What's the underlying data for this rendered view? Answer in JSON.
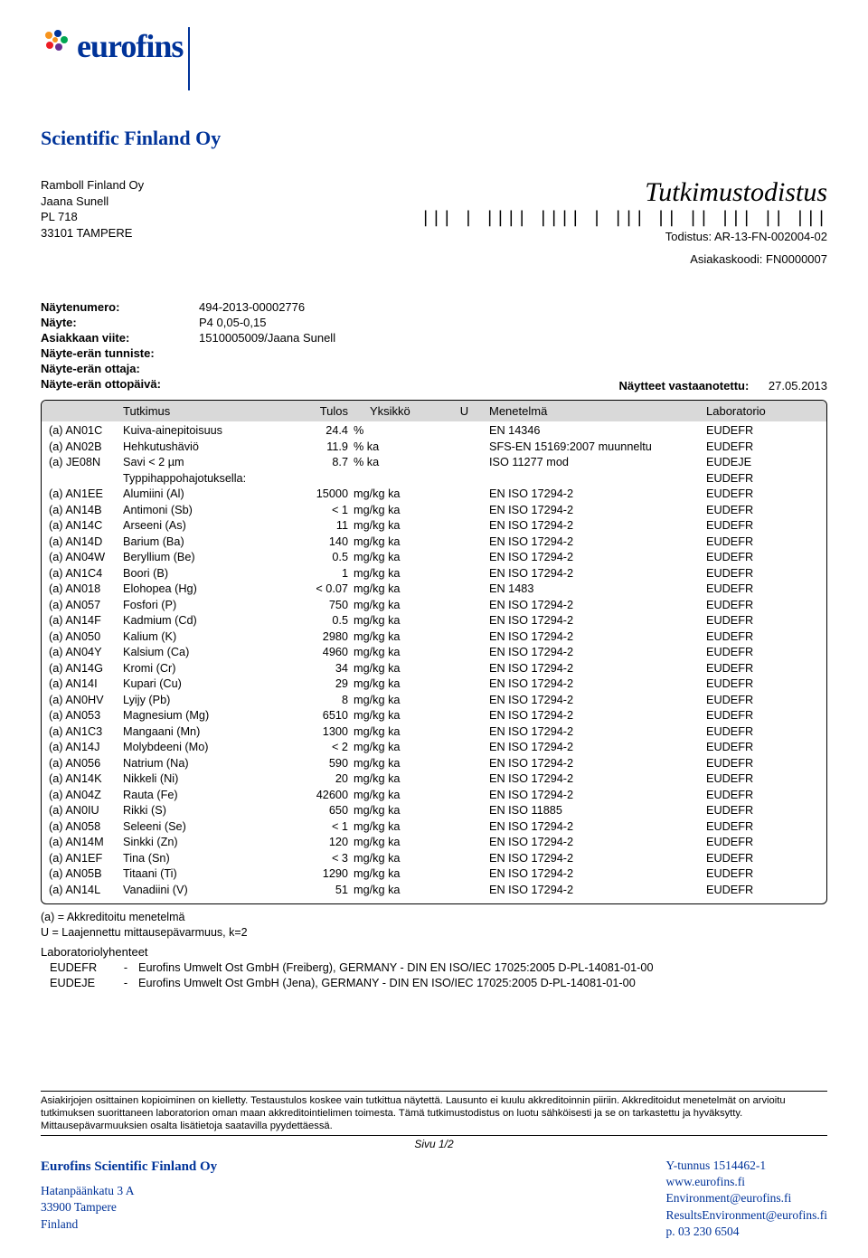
{
  "brand": {
    "logo_text": "eurofins",
    "company_line": "Scientific Finland Oy"
  },
  "customer": {
    "line1": "Ramboll Finland Oy",
    "line2": "Jaana Sunell",
    "line3": "PL 718",
    "line4": "33101 TAMPERE"
  },
  "doc": {
    "title": "Tutkimustodistus",
    "barcode_visual": "||| | |||| |||| | ||| || || ||| || |||",
    "cert_label": "Todistus:",
    "cert_value": "AR-13-FN-002004-02",
    "custcode_label": "Asiakaskoodi:",
    "custcode_value": "FN0000007"
  },
  "meta": {
    "rows": [
      {
        "k": "Näytenumero:",
        "v": "494-2013-00002776"
      },
      {
        "k": "Näyte:",
        "v": "P4  0,05-0,15"
      },
      {
        "k": "Asiakkaan viite:",
        "v": "1510005009/Jaana Sunell"
      },
      {
        "k": "Näyte-erän tunniste:",
        "v": ""
      },
      {
        "k": "Näyte-erän ottaja:",
        "v": ""
      },
      {
        "k": "Näyte-erän ottopäivä:",
        "v": ""
      }
    ],
    "received_label": "Näytteet vastaanotettu:",
    "received_value": "27.05.2013"
  },
  "table": {
    "head": {
      "tutkimus": "Tutkimus",
      "tulos": "Tulos",
      "yksikko": "Yksikkö",
      "u": "U",
      "menetelma": "Menetelmä",
      "lab": "Laboratorio"
    },
    "typpi_note": "Typpihappohajotuksella:",
    "typpi_lab": "EUDEFR",
    "rows_pre": [
      {
        "code": "(a)  AN01C",
        "name": "Kuiva-ainepitoisuus",
        "res": "24.4",
        "unit": "%",
        "meth": "EN 14346",
        "lab": "EUDEFR"
      },
      {
        "code": "(a)  AN02B",
        "name": "Hehkutushäviö",
        "res": "11.9",
        "unit": "% ka",
        "meth": "SFS-EN 15169:2007 muunneltu",
        "lab": "EUDEFR"
      },
      {
        "code": "(a)  JE08N",
        "name": "Savi < 2 µm",
        "res": "8.7",
        "unit": "% ka",
        "meth": "ISO 11277 mod",
        "lab": "EUDEJE"
      }
    ],
    "rows_post": [
      {
        "code": "(a)  AN1EE",
        "name": "Alumiini (Al)",
        "res": "15000",
        "unit": "mg/kg ka",
        "meth": "EN ISO 17294-2",
        "lab": "EUDEFR"
      },
      {
        "code": "(a)  AN14B",
        "name": "Antimoni (Sb)",
        "res": "< 1",
        "unit": "mg/kg ka",
        "meth": "EN ISO 17294-2",
        "lab": "EUDEFR"
      },
      {
        "code": "(a)  AN14C",
        "name": "Arseeni (As)",
        "res": "11",
        "unit": "mg/kg ka",
        "meth": "EN ISO 17294-2",
        "lab": "EUDEFR"
      },
      {
        "code": "(a)  AN14D",
        "name": "Barium (Ba)",
        "res": "140",
        "unit": "mg/kg ka",
        "meth": "EN ISO 17294-2",
        "lab": "EUDEFR"
      },
      {
        "code": "(a)  AN04W",
        "name": "Beryllium (Be)",
        "res": "0.5",
        "unit": "mg/kg ka",
        "meth": "EN ISO 17294-2",
        "lab": "EUDEFR"
      },
      {
        "code": "(a)  AN1C4",
        "name": "Boori (B)",
        "res": "1",
        "unit": "mg/kg ka",
        "meth": "EN ISO 17294-2",
        "lab": "EUDEFR"
      },
      {
        "code": "(a)  AN018",
        "name": "Elohopea (Hg)",
        "res": "< 0.07",
        "unit": "mg/kg ka",
        "meth": "EN 1483",
        "lab": "EUDEFR"
      },
      {
        "code": "(a)  AN057",
        "name": "Fosfori (P)",
        "res": "750",
        "unit": "mg/kg ka",
        "meth": "EN ISO 17294-2",
        "lab": "EUDEFR"
      },
      {
        "code": "(a)  AN14F",
        "name": "Kadmium (Cd)",
        "res": "0.5",
        "unit": "mg/kg ka",
        "meth": "EN ISO 17294-2",
        "lab": "EUDEFR"
      },
      {
        "code": "(a)  AN050",
        "name": "Kalium (K)",
        "res": "2980",
        "unit": "mg/kg ka",
        "meth": "EN ISO 17294-2",
        "lab": "EUDEFR"
      },
      {
        "code": "(a)  AN04Y",
        "name": "Kalsium (Ca)",
        "res": "4960",
        "unit": "mg/kg ka",
        "meth": "EN ISO 17294-2",
        "lab": "EUDEFR"
      },
      {
        "code": "(a)  AN14G",
        "name": "Kromi (Cr)",
        "res": "34",
        "unit": "mg/kg ka",
        "meth": "EN ISO 17294-2",
        "lab": "EUDEFR"
      },
      {
        "code": "(a)  AN14I",
        "name": "Kupari (Cu)",
        "res": "29",
        "unit": "mg/kg ka",
        "meth": "EN ISO 17294-2",
        "lab": "EUDEFR"
      },
      {
        "code": "(a)  AN0HV",
        "name": "Lyijy (Pb)",
        "res": "8",
        "unit": "mg/kg ka",
        "meth": "EN ISO 17294-2",
        "lab": "EUDEFR"
      },
      {
        "code": "(a)  AN053",
        "name": "Magnesium (Mg)",
        "res": "6510",
        "unit": "mg/kg ka",
        "meth": "EN ISO 17294-2",
        "lab": "EUDEFR"
      },
      {
        "code": "(a)  AN1C3",
        "name": "Mangaani (Mn)",
        "res": "1300",
        "unit": "mg/kg ka",
        "meth": "EN ISO 17294-2",
        "lab": "EUDEFR"
      },
      {
        "code": "(a)  AN14J",
        "name": "Molybdeeni (Mo)",
        "res": "< 2",
        "unit": "mg/kg ka",
        "meth": "EN ISO 17294-2",
        "lab": "EUDEFR"
      },
      {
        "code": "(a)  AN056",
        "name": "Natrium (Na)",
        "res": "590",
        "unit": "mg/kg ka",
        "meth": "EN ISO 17294-2",
        "lab": "EUDEFR"
      },
      {
        "code": "(a)  AN14K",
        "name": "Nikkeli (Ni)",
        "res": "20",
        "unit": "mg/kg ka",
        "meth": "EN ISO 17294-2",
        "lab": "EUDEFR"
      },
      {
        "code": "(a)  AN04Z",
        "name": "Rauta (Fe)",
        "res": "42600",
        "unit": "mg/kg ka",
        "meth": "EN ISO 17294-2",
        "lab": "EUDEFR"
      },
      {
        "code": "(a)  AN0IU",
        "name": "Rikki (S)",
        "res": "650",
        "unit": "mg/kg ka",
        "meth": "EN ISO 11885",
        "lab": "EUDEFR"
      },
      {
        "code": "(a)  AN058",
        "name": "Seleeni (Se)",
        "res": "< 1",
        "unit": "mg/kg ka",
        "meth": "EN ISO 17294-2",
        "lab": "EUDEFR"
      },
      {
        "code": "(a)  AN14M",
        "name": "Sinkki (Zn)",
        "res": "120",
        "unit": "mg/kg ka",
        "meth": "EN ISO 17294-2",
        "lab": "EUDEFR"
      },
      {
        "code": "(a)  AN1EF",
        "name": "Tina (Sn)",
        "res": "< 3",
        "unit": "mg/kg ka",
        "meth": "EN ISO 17294-2",
        "lab": "EUDEFR"
      },
      {
        "code": "(a)  AN05B",
        "name": "Titaani (Ti)",
        "res": "1290",
        "unit": "mg/kg ka",
        "meth": "EN ISO 17294-2",
        "lab": "EUDEFR"
      },
      {
        "code": "(a)  AN14L",
        "name": "Vanadiini (V)",
        "res": "51",
        "unit": "mg/kg ka",
        "meth": "EN ISO 17294-2",
        "lab": "EUDEFR"
      }
    ]
  },
  "footnotes": {
    "line1": "(a) = Akkreditoitu menetelmä",
    "line2": "U = Laajennettu mittausepävarmuus, k=2",
    "lab_title": "Laboratoriolyhenteet",
    "labs": [
      {
        "code": "EUDEFR",
        "dash": "-",
        "desc": "Eurofins Umwelt Ost GmbH (Freiberg), GERMANY - DIN EN ISO/IEC 17025:2005 D-PL-14081-01-00"
      },
      {
        "code": "EUDEJE",
        "dash": "-",
        "desc": "Eurofins Umwelt Ost GmbH (Jena), GERMANY - DIN EN ISO/IEC 17025:2005 D-PL-14081-01-00"
      }
    ]
  },
  "disclaimer": "Asiakirjojen osittainen kopioiminen on kielletty. Testaustulos koskee vain tutkittua näytettä. Lausunto ei kuulu akkreditoinnin piiriin. Akkreditoidut menetelmät on arvioitu tutkimuksen suorittaneen laboratorion oman maan akkreditointielimen toimesta. Tämä tutkimustodistus on luotu sähköisesti ja se on tarkastettu ja hyväksytty. Mittausepävarmuuksien osalta lisätietoja saatavilla pyydettäessä.",
  "pagenum": "Sivu 1/2",
  "footer": {
    "left": {
      "name": "Eurofins Scientific Finland Oy",
      "addr1": "Hatanpäänkatu 3 A",
      "addr2": "33900 Tampere",
      "addr3": "Finland"
    },
    "right": {
      "l1": "Y-tunnus 1514462-1",
      "l2": "www.eurofins.fi",
      "l3": "Environment@eurofins.fi",
      "l4": "ResultsEnvironment@eurofins.fi",
      "l5": "p. 03 230 6504"
    }
  },
  "colors": {
    "brand_blue": "#003399",
    "header_gray": "#d9d9d9",
    "text": "#000000",
    "bg": "#ffffff"
  }
}
